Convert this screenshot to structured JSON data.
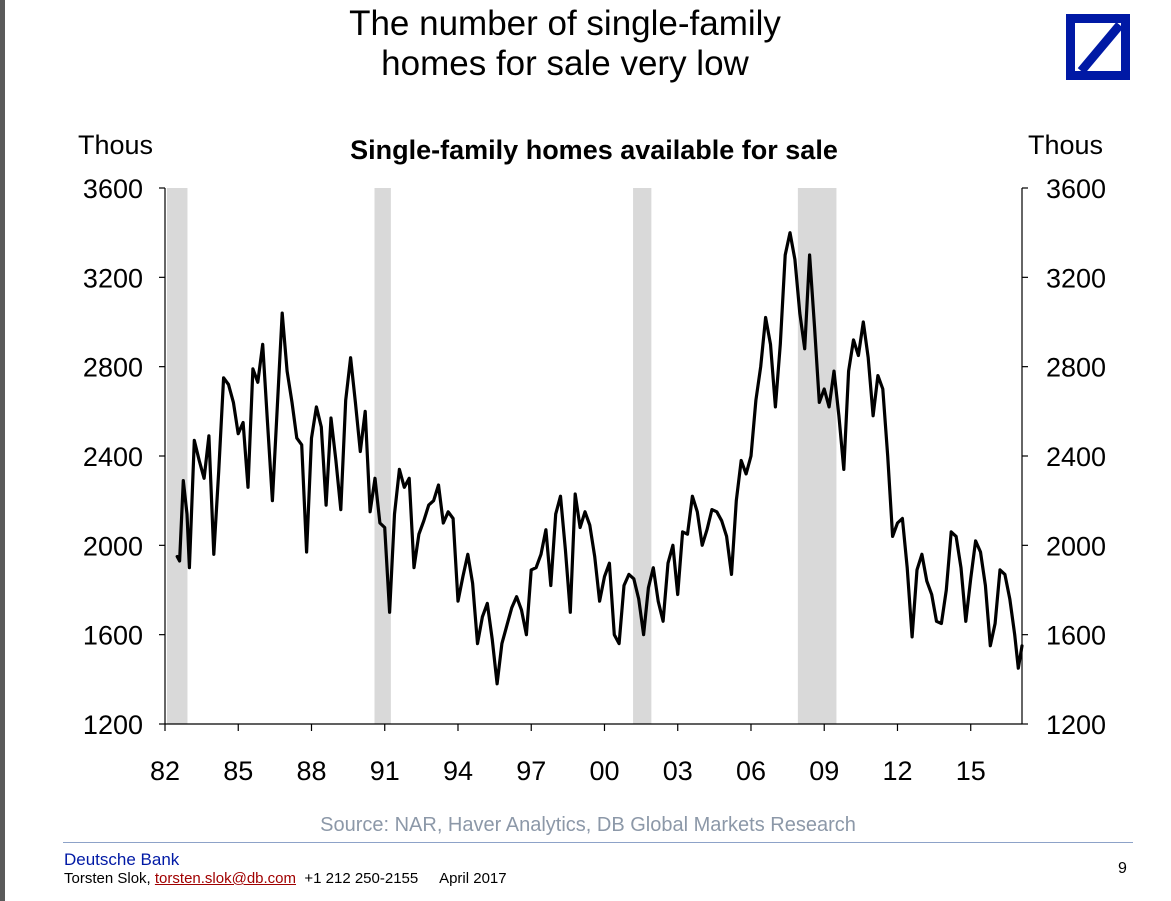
{
  "slide": {
    "title_line1": "The number of single-family",
    "title_line2": "homes for sale very low",
    "source": "Source: NAR, Haver Analytics, DB Global Markets Research",
    "footer_brand": "Deutsche Bank",
    "footer_author": "Torsten Slok,",
    "footer_email": "torsten.slok@db.com",
    "footer_phone": "+1 212 250-2155",
    "footer_date": "April 2017",
    "page_number": "9",
    "logo_color": "#0019a5"
  },
  "chart_data": {
    "type": "line",
    "title": "Single-family homes available for sale",
    "ylabel_left": "Thous",
    "ylabel_right": "Thous",
    "ylim": [
      1200,
      3600
    ],
    "yticks": [
      "1200",
      "1600",
      "2000",
      "2400",
      "2800",
      "3200",
      "3600"
    ],
    "xlim": [
      1982,
      2017.1
    ],
    "xticks": [
      {
        "value": 1982,
        "label": "82"
      },
      {
        "value": 1985,
        "label": "85"
      },
      {
        "value": 1988,
        "label": "88"
      },
      {
        "value": 1991,
        "label": "91"
      },
      {
        "value": 1994,
        "label": "94"
      },
      {
        "value": 1997,
        "label": "97"
      },
      {
        "value": 2000,
        "label": "00"
      },
      {
        "value": 2003,
        "label": "03"
      },
      {
        "value": 2006,
        "label": "06"
      },
      {
        "value": 2009,
        "label": "09"
      },
      {
        "value": 2012,
        "label": "12"
      },
      {
        "value": 2015,
        "label": "15"
      }
    ],
    "line_color": "#000000",
    "recession_color": "#d9d9d9",
    "recessions": [
      [
        1982.08,
        1982.92
      ],
      [
        1990.58,
        1991.25
      ],
      [
        2001.17,
        2001.92
      ],
      [
        2007.92,
        2009.5
      ]
    ],
    "series": [
      {
        "x": [
          1982.5,
          1982.6,
          1982.75,
          1982.9,
          1983.0,
          1983.2,
          1983.4,
          1983.6,
          1983.8,
          1984.0,
          1984.2,
          1984.4,
          1984.6,
          1984.8,
          1985.0,
          1985.2,
          1985.4,
          1985.6,
          1985.8,
          1986.0,
          1986.2,
          1986.4,
          1986.6,
          1986.8,
          1987.0,
          1987.2,
          1987.4,
          1987.6,
          1987.8,
          1988.0,
          1988.2,
          1988.4,
          1988.6,
          1988.8,
          1989.0,
          1989.2,
          1989.4,
          1989.6,
          1989.8,
          1990.0,
          1990.2,
          1990.4,
          1990.6,
          1990.8,
          1991.0,
          1991.2,
          1991.4,
          1991.6,
          1991.8,
          1992.0,
          1992.2,
          1992.4,
          1992.6,
          1992.8,
          1993.0,
          1993.2,
          1993.4,
          1993.6,
          1993.8,
          1994.0,
          1994.2,
          1994.4,
          1994.6,
          1994.8,
          1995.0,
          1995.2,
          1995.4,
          1995.6,
          1995.8,
          1996.0,
          1996.2,
          1996.4,
          1996.6,
          1996.8,
          1997.0,
          1997.2,
          1997.4,
          1997.6,
          1997.8,
          1998.0,
          1998.2,
          1998.4,
          1998.6,
          1998.8,
          1999.0,
          1999.2,
          1999.4,
          1999.6,
          1999.8,
          2000.0,
          2000.2,
          2000.4,
          2000.6,
          2000.8,
          2001.0,
          2001.2,
          2001.4,
          2001.6,
          2001.8,
          2002.0,
          2002.2,
          2002.4,
          2002.6,
          2002.8,
          2003.0,
          2003.2,
          2003.4,
          2003.6,
          2003.8,
          2004.0,
          2004.2,
          2004.4,
          2004.6,
          2004.8,
          2005.0,
          2005.2,
          2005.4,
          2005.6,
          2005.8,
          2006.0,
          2006.2,
          2006.4,
          2006.6,
          2006.8,
          2007.0,
          2007.2,
          2007.4,
          2007.6,
          2007.8,
          2008.0,
          2008.2,
          2008.4,
          2008.6,
          2008.8,
          2009.0,
          2009.2,
          2009.4,
          2009.6,
          2009.8,
          2010.0,
          2010.2,
          2010.4,
          2010.6,
          2010.8,
          2011.0,
          2011.2,
          2011.4,
          2011.6,
          2011.8,
          2012.0,
          2012.2,
          2012.4,
          2012.6,
          2012.8,
          2013.0,
          2013.2,
          2013.4,
          2013.6,
          2013.8,
          2014.0,
          2014.2,
          2014.4,
          2014.6,
          2014.8,
          2015.0,
          2015.2,
          2015.4,
          2015.6,
          2015.8,
          2016.0,
          2016.2,
          2016.4,
          2016.6,
          2016.8,
          2016.95,
          2017.1
        ],
        "y": [
          1950,
          1930,
          2290,
          2140,
          1900,
          2470,
          2380,
          2300,
          2490,
          1960,
          2330,
          2750,
          2720,
          2640,
          2500,
          2550,
          2260,
          2790,
          2730,
          2900,
          2550,
          2200,
          2620,
          3040,
          2780,
          2640,
          2480,
          2450,
          1970,
          2480,
          2620,
          2530,
          2180,
          2570,
          2380,
          2160,
          2650,
          2840,
          2640,
          2420,
          2600,
          2150,
          2300,
          2100,
          2080,
          1700,
          2140,
          2340,
          2260,
          2300,
          1900,
          2050,
          2110,
          2180,
          2200,
          2270,
          2100,
          2150,
          2120,
          1750,
          1860,
          1960,
          1830,
          1560,
          1680,
          1740,
          1580,
          1380,
          1560,
          1640,
          1720,
          1770,
          1710,
          1600,
          1890,
          1900,
          1960,
          2070,
          1820,
          2140,
          2220,
          1980,
          1700,
          2230,
          2080,
          2150,
          2090,
          1950,
          1750,
          1860,
          1920,
          1600,
          1560,
          1820,
          1870,
          1850,
          1760,
          1600,
          1810,
          1900,
          1750,
          1660,
          1920,
          2000,
          1780,
          2060,
          2050,
          2220,
          2150,
          2000,
          2070,
          2160,
          2150,
          2110,
          2040,
          1870,
          2200,
          2380,
          2320,
          2400,
          2650,
          2800,
          3020,
          2900,
          2620,
          2900,
          3300,
          3400,
          3280,
          3040,
          2880,
          3300,
          2980,
          2640,
          2700,
          2620,
          2780,
          2580,
          2340,
          2780,
          2920,
          2850,
          3000,
          2840,
          2580,
          2760,
          2700,
          2400,
          2040,
          2100,
          2120,
          1900,
          1590,
          1890,
          1960,
          1840,
          1780,
          1660,
          1650,
          1800,
          2060,
          2040,
          1900,
          1660,
          1850,
          2020,
          1970,
          1820,
          1550,
          1650,
          1890,
          1870,
          1760,
          1600,
          1450,
          1550
        ]
      }
    ]
  }
}
